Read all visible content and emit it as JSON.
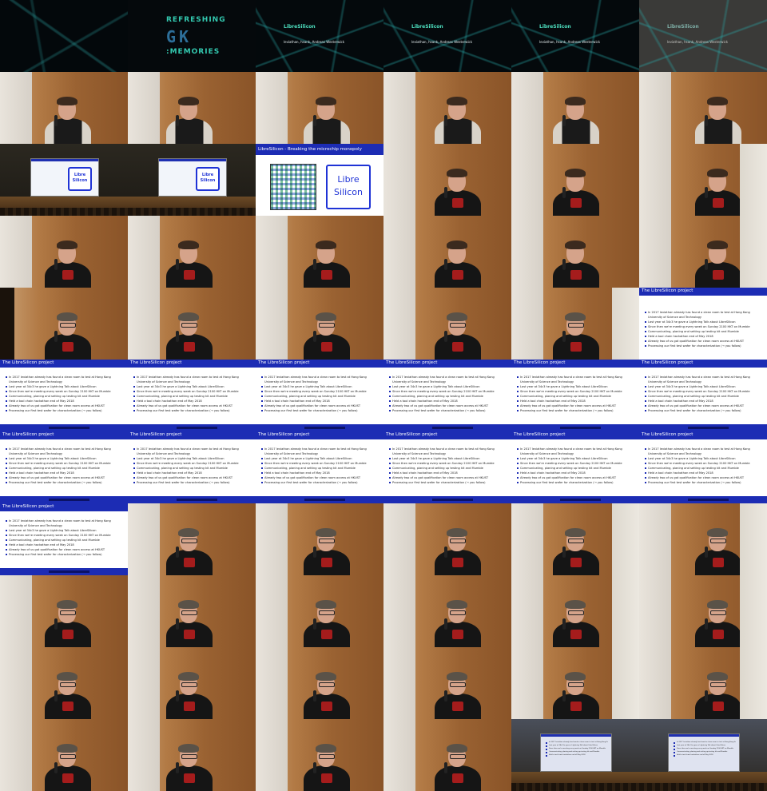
{
  "intro": {
    "logo_lines": [
      "REFRESHING",
      ":MEMORIES"
    ],
    "logo_letters": "GK",
    "talk_title": "LibreSilicon",
    "talk_authors": "leviathan, hsank, Andreas Westerwick"
  },
  "projection": {
    "chip_top": "Libre",
    "chip_bottom": "Silicon",
    "slide_title": "LibreSilicon - Breaking the microchip monopoly"
  },
  "slide": {
    "title": "The LibreSilicon project",
    "bullets": [
      "In 2017 leviathan already has found a clean room to test at Hong Kong University of Science and Technology",
      "Last year at 34c3 he gave a Lightning Talk about LibreSilicon",
      "Since then we're meeting every week on Sunday 2100 HKT on Mumble",
      "Communicating, planing and setting up testing kit and Mumble",
      "Held a tool chain hackathon end of May 2018",
      "Already two of us got qualification for clean room access at HKUST",
      "Processing our first test wafer for characterization (→ you follow)"
    ]
  },
  "colors": {
    "slide_blue": "#1c2cb4",
    "chip_blue": "#1f33d6",
    "teal": "#33c9b0"
  }
}
